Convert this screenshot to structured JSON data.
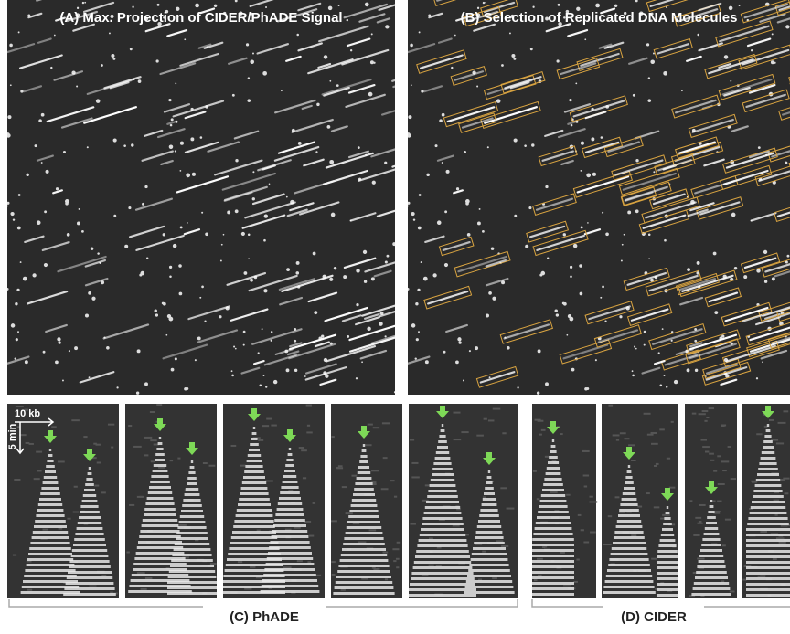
{
  "panels": {
    "a": {
      "title": "(A) Max. Projection of CIDER/PhADE Signal"
    },
    "b": {
      "title": "(B) Selection of Replicated DNA Molecules"
    },
    "c": {
      "label": "(C) PhADE",
      "scale_x": "10 kb",
      "scale_y": "5 min"
    },
    "d": {
      "label": "(D) CIDER"
    }
  }
}
